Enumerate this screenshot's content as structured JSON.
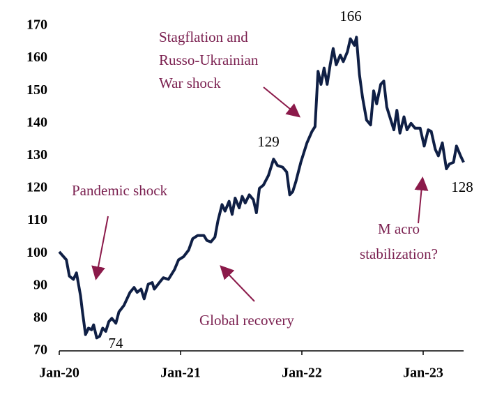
{
  "chart_data": {
    "type": "line",
    "x": [
      0,
      0.7,
      1.0,
      1.4,
      1.7,
      2.1,
      2.3,
      2.6,
      2.9,
      3.2,
      3.4,
      3.7,
      4.0,
      4.3,
      4.6,
      4.9,
      5.2,
      5.6,
      5.9,
      6.4,
      7.0,
      7.4,
      7.7,
      8.1,
      8.4,
      8.8,
      9.2,
      9.4,
      9.9,
      10.3,
      10.8,
      11.4,
      11.8,
      12.3,
      12.8,
      13.2,
      13.7,
      14.3,
      14.6,
      15.0,
      15.4,
      15.7,
      16.1,
      16.4,
      16.8,
      17.1,
      17.4,
      17.8,
      18.1,
      18.4,
      18.8,
      19.2,
      19.5,
      19.8,
      20.2,
      20.7,
      21.2,
      21.6,
      22.1,
      22.5,
      22.8,
      23.1,
      23.4,
      23.9,
      24.5,
      25.0,
      25.3,
      25.6,
      25.9,
      26.2,
      26.5,
      26.8,
      27.1,
      27.4,
      27.8,
      28.1,
      28.5,
      28.8,
      29.2,
      29.4,
      29.7,
      30.0,
      30.4,
      30.8,
      31.1,
      31.4,
      31.8,
      32.1,
      32.4,
      32.8,
      33.1,
      33.4,
      33.7,
      34.1,
      34.4,
      34.8,
      35.2,
      35.7,
      36.1,
      36.5,
      36.8,
      37.2,
      37.5,
      37.9,
      38.3,
      38.6,
      39.0,
      39.3,
      39.7,
      40.0
    ],
    "values": [
      100.5,
      98,
      93,
      92,
      94,
      87,
      82,
      75,
      77,
      76.5,
      78,
      74,
      74.5,
      77,
      76,
      79,
      80,
      78.5,
      82,
      84,
      88,
      89.5,
      88,
      89,
      86,
      90.5,
      91,
      89,
      91,
      92.5,
      92,
      95,
      98,
      99,
      101,
      104.5,
      105.5,
      105.5,
      104,
      103.5,
      105,
      110,
      115,
      113,
      116,
      112,
      117,
      114,
      117.5,
      115.5,
      118,
      116.5,
      112.5,
      120,
      121,
      124,
      129,
      127,
      126.5,
      125,
      118,
      119,
      122,
      128,
      134,
      137.5,
      139,
      156,
      152,
      157,
      152,
      158,
      163,
      158,
      161,
      159,
      162,
      166,
      164,
      166.5,
      155,
      148,
      141,
      139.5,
      150,
      146,
      152,
      153,
      145,
      141,
      138,
      144,
      137,
      142,
      138,
      140,
      138.5,
      138.5,
      133,
      138,
      137.5,
      132,
      130,
      134,
      126,
      127.5,
      128,
      133,
      130,
      128
    ],
    "color": "#0f1f45",
    "xlim": [
      0,
      40
    ],
    "xticks": [
      {
        "value": 0,
        "label": "Jan-20"
      },
      {
        "value": 12,
        "label": "Jan-21"
      },
      {
        "value": 24,
        "label": "Jan-22"
      },
      {
        "value": 36,
        "label": "Jan-23"
      }
    ],
    "ylim": [
      70,
      170
    ],
    "yticks": [
      70,
      80,
      90,
      100,
      110,
      120,
      130,
      140,
      150,
      160,
      170
    ],
    "grid": false,
    "annotations": [
      {
        "lines": [
          "Stagflation and",
          "Russo-Ukrainian",
          "War shock"
        ]
      },
      {
        "lines": [
          "Pandemic shock"
        ]
      },
      {
        "lines": [
          "Global recovery"
        ]
      },
      {
        "lines": [
          "M acro",
          "stabilization?"
        ]
      },
      {
        "lines": [
          "166"
        ]
      },
      {
        "lines": [
          "129"
        ]
      },
      {
        "lines": [
          "74"
        ]
      },
      {
        "lines": [
          "128"
        ]
      }
    ]
  }
}
